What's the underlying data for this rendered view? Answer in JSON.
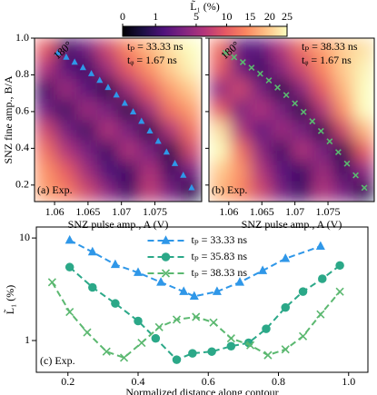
{
  "chart_data": [
    {
      "type": "heatmap",
      "colorbar": {
        "label": "L̃₁ (%)",
        "lim": [
          0,
          25
        ],
        "ticks": [
          0,
          1,
          5,
          10,
          15,
          20,
          25
        ],
        "gamma": 0.5,
        "colormap": "magma"
      },
      "xlabel": "SNZ pulse amp., A (V)",
      "ylabel": "SNZ fine amp., B/A",
      "xlim": [
        1.057,
        1.082
      ],
      "ylim": [
        0.11,
        1.0
      ],
      "xticks": [
        1.06,
        1.065,
        1.07,
        1.075
      ],
      "yticks": [
        0.2,
        0.4,
        0.6,
        0.8,
        {
          "value": 1.0,
          "label": "1.0"
        }
      ],
      "z": [
        [
          10,
          1,
          3,
          8,
          14,
          18,
          22,
          25
        ],
        [
          6,
          2,
          1,
          5,
          10,
          15,
          20,
          24
        ],
        [
          1,
          5,
          2,
          0.5,
          5,
          10,
          16,
          20
        ],
        [
          3,
          1,
          5,
          3,
          0.5,
          5,
          12,
          16
        ],
        [
          8,
          3,
          1,
          6,
          3,
          0.5,
          6,
          12
        ],
        [
          12,
          6,
          3,
          1,
          6,
          3,
          0.5,
          8
        ],
        [
          15,
          10,
          5,
          1.5,
          1,
          6,
          1,
          3
        ],
        [
          16,
          13,
          8,
          4,
          1,
          7,
          3,
          0.5
        ]
      ],
      "contour": {
        "color": "#2f97e8",
        "marker": "triangle",
        "x": [
          1.0605,
          1.06175,
          1.063,
          1.06425,
          1.0655,
          1.06675,
          1.068,
          1.06925,
          1.0705,
          1.07175,
          1.073,
          1.07425,
          1.0755,
          1.07675,
          1.078,
          1.07925,
          1.0805
        ],
        "y": [
          0.92,
          0.896,
          0.869,
          0.839,
          0.806,
          0.77,
          0.731,
          0.69,
          0.645,
          0.598,
          0.547,
          0.494,
          0.438,
          0.379,
          0.317,
          0.253,
          0.185
        ]
      },
      "contour_label": "180°",
      "annotations": [
        "tₚ = 33.33 ns",
        "tᵩ = 1.67 ns"
      ],
      "panel_label": "(a) Exp."
    },
    {
      "type": "heatmap",
      "xlabel": "SNZ pulse amp., A (V)",
      "xlim": [
        1.057,
        1.082
      ],
      "ylim": [
        0.11,
        1.0
      ],
      "xticks": [
        1.06,
        1.065,
        1.07,
        1.075
      ],
      "yticks": [
        0.2,
        0.4,
        0.6,
        0.8,
        1.0
      ],
      "z": [
        [
          12,
          2,
          2,
          6,
          12,
          16,
          20,
          22
        ],
        [
          10,
          3,
          1,
          4,
          8,
          14,
          20,
          24
        ],
        [
          4,
          8,
          3,
          0.5,
          4,
          10,
          18,
          25
        ],
        [
          10,
          3,
          6,
          3,
          0.5,
          6,
          15,
          25
        ],
        [
          22,
          6,
          2,
          5,
          3,
          0.5,
          8,
          18
        ],
        [
          25,
          12,
          4,
          1,
          6,
          3,
          0.5,
          10
        ],
        [
          20,
          15,
          6,
          2,
          1,
          5,
          1,
          4
        ],
        [
          18,
          14,
          8,
          3,
          1,
          6,
          3,
          0.5
        ]
      ],
      "contour": {
        "color": "#5bb870",
        "marker": "x",
        "x": [
          1.0595,
          1.06081,
          1.06213,
          1.06344,
          1.06475,
          1.06606,
          1.06738,
          1.06869,
          1.07,
          1.07131,
          1.07263,
          1.07394,
          1.07525,
          1.07656,
          1.07788,
          1.07919,
          1.0805
        ],
        "y": [
          0.92,
          0.896,
          0.869,
          0.839,
          0.806,
          0.77,
          0.731,
          0.69,
          0.645,
          0.598,
          0.547,
          0.494,
          0.438,
          0.379,
          0.317,
          0.253,
          0.185
        ]
      },
      "contour_label": "180°",
      "annotations": [
        "tₚ = 38.33 ns",
        "tᵩ = 1.67 ns"
      ],
      "panel_label": "(b) Exp."
    },
    {
      "type": "line",
      "xlabel": "Normalized distance along contour",
      "ylabel": "L̃₁ (%)",
      "xlim": [
        0.11,
        1.055
      ],
      "ylim": [
        0.49,
        12.8
      ],
      "yscale": "log",
      "xticks": [
        0.2,
        0.4,
        0.6,
        0.8,
        {
          "value": 1.0,
          "label": "1.0"
        }
      ],
      "yticks": [
        1,
        10
      ],
      "legend": "upper center",
      "series": [
        {
          "name": "tₚ = 33.33 ns",
          "color": "#2f97e8",
          "marker": "triangle",
          "x": [
            0.205,
            0.27,
            0.335,
            0.4,
            0.465,
            0.53,
            0.56,
            0.625,
            0.69,
            0.755,
            0.82,
            0.92
          ],
          "values": [
            9.5,
            7.3,
            5.5,
            4.6,
            3.7,
            3.0,
            2.7,
            3.0,
            3.7,
            4.8,
            6.3,
            8.3
          ]
        },
        {
          "name": "tₚ = 35.83 ns",
          "color": "#2ba888",
          "marker": "circle",
          "x": [
            0.205,
            0.27,
            0.335,
            0.4,
            0.45,
            0.51,
            0.555,
            0.61,
            0.665,
            0.715,
            0.765,
            0.82,
            0.87,
            0.925,
            0.975
          ],
          "values": [
            5.2,
            3.3,
            2.3,
            1.55,
            1.05,
            0.65,
            0.75,
            0.78,
            0.88,
            0.95,
            1.3,
            2.1,
            3.0,
            4.0,
            5.4
          ]
        },
        {
          "name": "tₚ = 38.33 ns",
          "color": "#5bb870",
          "marker": "x",
          "x": [
            0.155,
            0.205,
            0.255,
            0.31,
            0.36,
            0.41,
            0.46,
            0.51,
            0.565,
            0.615,
            0.665,
            0.72,
            0.77,
            0.82,
            0.87,
            0.92,
            0.975
          ],
          "values": [
            3.7,
            1.9,
            1.2,
            0.78,
            0.68,
            0.95,
            1.35,
            1.6,
            1.7,
            1.5,
            1.05,
            0.9,
            0.72,
            0.82,
            1.1,
            1.8,
            3.0
          ]
        }
      ],
      "panel_label": "(c) Exp."
    }
  ]
}
